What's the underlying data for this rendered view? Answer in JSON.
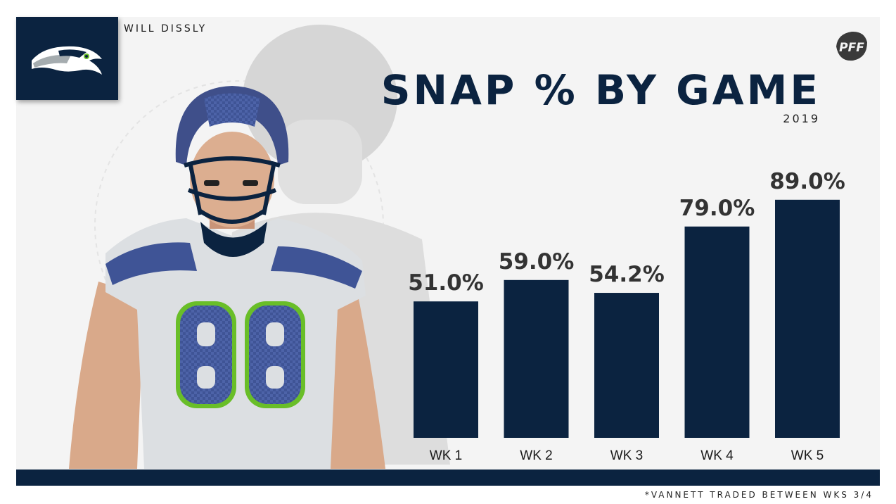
{
  "header": {
    "player_name": "WILL DISSLY",
    "team_logo_icon": "seahawks-logo-icon",
    "brand_icon": "pff-logo-icon"
  },
  "footnote": "*VANNETT TRADED BETWEEN WKS 3/4",
  "colors": {
    "navy": "#0b2340",
    "background": "#f4f4f4",
    "value_text": "#333333",
    "jersey_green": "#69be28"
  },
  "chart_data": {
    "type": "bar",
    "title": "SNAP % BY GAME",
    "subtitle": "2019",
    "xlabel": "",
    "ylabel": "",
    "categories": [
      "WK 1",
      "WK 2",
      "WK 3",
      "WK 4",
      "WK 5"
    ],
    "values": [
      51.0,
      59.0,
      54.2,
      79.0,
      89.0
    ],
    "value_labels": [
      "51.0%",
      "59.0%",
      "54.2%",
      "79.0%",
      "89.0%"
    ],
    "ylim": [
      0,
      100
    ],
    "grid": false,
    "legend": "none"
  }
}
